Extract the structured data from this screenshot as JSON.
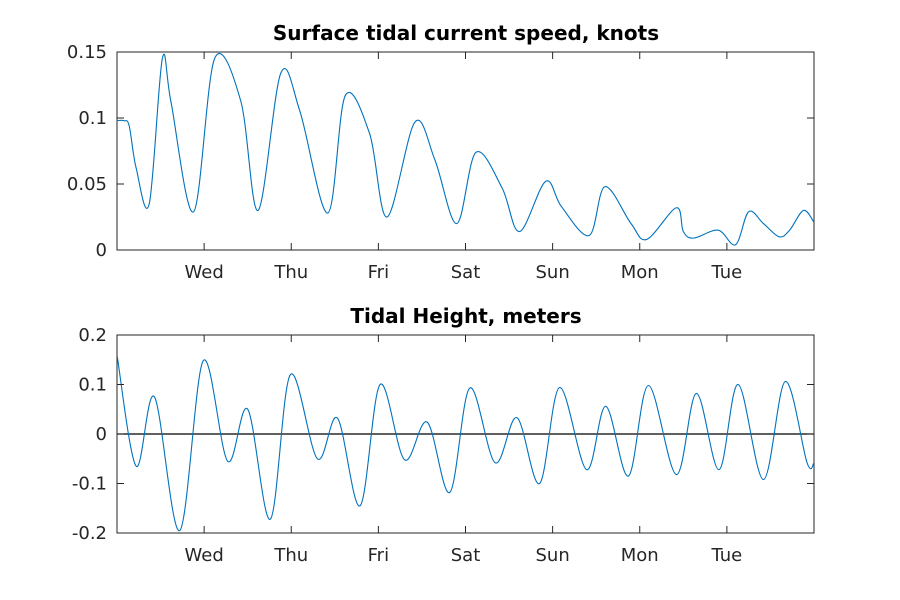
{
  "chart_data": [
    {
      "type": "line",
      "title": "Surface tidal current speed, knots",
      "xlabel": "",
      "ylabel": "",
      "x_ticks": [
        "Wed",
        "Thu",
        "Fri",
        "Sat",
        "Sun",
        "Mon",
        "Tue"
      ],
      "xlim_days": [
        0,
        8
      ],
      "ylim": [
        0,
        0.15
      ],
      "y_ticks": [
        0,
        0.05,
        0.1,
        0.15
      ],
      "y_tick_labels": [
        "0",
        "0.05",
        "0.1",
        "0.15"
      ],
      "grid": false,
      "zero_line": false,
      "series": [
        {
          "color": "#0072BD",
          "x_days": [
            0.0,
            0.08,
            0.14,
            0.22,
            0.37,
            0.52,
            0.62,
            0.88,
            1.12,
            1.42,
            1.62,
            1.88,
            2.1,
            2.42,
            2.62,
            2.9,
            3.1,
            3.42,
            3.65,
            3.9,
            4.12,
            4.42,
            4.62,
            4.92,
            5.1,
            5.42,
            5.6,
            5.9,
            6.08,
            6.42,
            6.5,
            6.62,
            6.9,
            7.1,
            7.25,
            7.42,
            7.6,
            7.72,
            7.88,
            8.0
          ],
          "values": [
            0.098,
            0.098,
            0.094,
            0.062,
            0.035,
            0.145,
            0.112,
            0.029,
            0.145,
            0.113,
            0.03,
            0.134,
            0.105,
            0.028,
            0.117,
            0.088,
            0.025,
            0.097,
            0.068,
            0.02,
            0.074,
            0.047,
            0.014,
            0.052,
            0.033,
            0.011,
            0.048,
            0.02,
            0.008,
            0.032,
            0.014,
            0.009,
            0.015,
            0.004,
            0.029,
            0.02,
            0.01,
            0.015,
            0.03,
            0.021
          ]
        }
      ]
    },
    {
      "type": "line",
      "title": "Tidal Height, meters",
      "xlabel": "",
      "ylabel": "",
      "x_ticks": [
        "Wed",
        "Thu",
        "Fri",
        "Sat",
        "Sun",
        "Mon",
        "Tue"
      ],
      "xlim_days": [
        0,
        8
      ],
      "ylim": [
        -0.2,
        0.2
      ],
      "y_ticks": [
        -0.2,
        -0.1,
        0,
        0.1,
        0.2
      ],
      "y_tick_labels": [
        "-0.2",
        "-0.1",
        "0",
        "0.1",
        "0.2"
      ],
      "grid": false,
      "zero_line": true,
      "series": [
        {
          "color": "#0072BD",
          "x_days": [
            0.0,
            0.22,
            0.43,
            0.72,
            0.99,
            1.27,
            1.5,
            1.76,
            1.99,
            2.3,
            2.53,
            2.79,
            3.02,
            3.3,
            3.56,
            3.82,
            4.05,
            4.34,
            4.59,
            4.85,
            5.08,
            5.39,
            5.61,
            5.87,
            6.1,
            6.42,
            6.65,
            6.91,
            7.13,
            7.42,
            7.67,
            7.92,
            8.0
          ],
          "values": [
            0.16,
            -0.065,
            0.075,
            -0.195,
            0.148,
            -0.055,
            0.05,
            -0.172,
            0.12,
            -0.05,
            0.032,
            -0.145,
            0.1,
            -0.052,
            0.024,
            -0.118,
            0.093,
            -0.058,
            0.033,
            -0.1,
            0.094,
            -0.072,
            0.056,
            -0.085,
            0.098,
            -0.082,
            0.082,
            -0.072,
            0.1,
            -0.092,
            0.106,
            -0.058,
            -0.058
          ]
        }
      ]
    }
  ]
}
